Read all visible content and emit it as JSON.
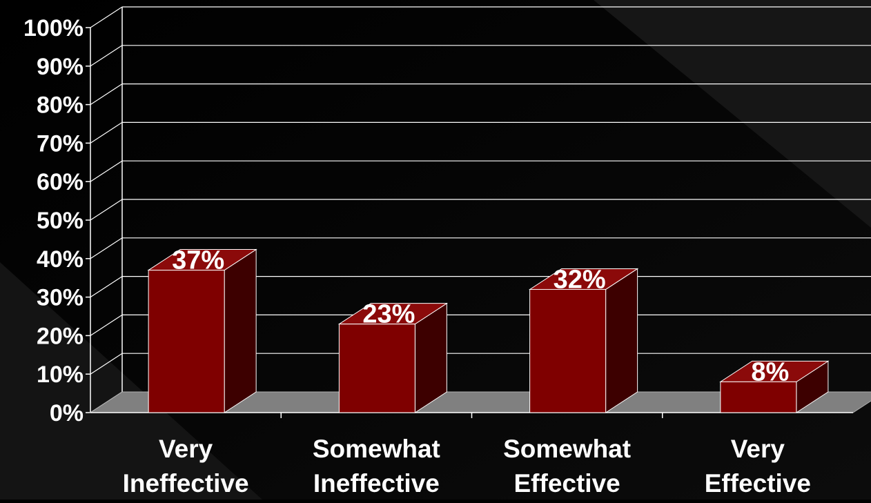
{
  "chart_data": {
    "type": "bar",
    "categories": [
      [
        "Very",
        "Ineffective"
      ],
      [
        "Somewhat",
        "Ineffective"
      ],
      [
        "Somewhat",
        "Effective"
      ],
      [
        "Very",
        "Effective"
      ]
    ],
    "values": [
      37,
      23,
      32,
      8
    ],
    "data_labels": [
      "37%",
      "23%",
      "32%",
      "8%"
    ],
    "y_ticks": [
      "0%",
      "10%",
      "20%",
      "30%",
      "40%",
      "50%",
      "60%",
      "70%",
      "80%",
      "90%",
      "100%"
    ],
    "ylim": [
      0,
      100
    ],
    "grid": true,
    "style": "3d-column",
    "colors": {
      "background": "#000000",
      "bar_front": "#7f0000",
      "bar_top": "#8b0a0a",
      "bar_side": "#3d0000",
      "floor": "#808080",
      "grid": "#ffffff",
      "text": "#ffffff"
    }
  }
}
